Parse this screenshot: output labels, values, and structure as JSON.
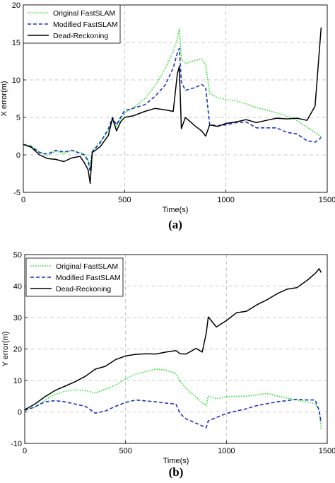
{
  "chart_data": [
    {
      "type": "line",
      "caption": "(a)",
      "xlabel": "Time(s)",
      "ylabel": "X error(m)",
      "xlim": [
        0,
        1500
      ],
      "ylim": [
        -5,
        20
      ],
      "xticks": [
        0,
        500,
        1000,
        1500
      ],
      "yticks": [
        -5,
        0,
        5,
        10,
        15,
        20
      ],
      "grid": true,
      "legend_position": "top-left",
      "series": [
        {
          "name": "Original FastSLAM",
          "color": "#33dd33",
          "dash": "dotted",
          "x": [
            0,
            40,
            80,
            120,
            160,
            200,
            240,
            280,
            300,
            320,
            330,
            340,
            380,
            420,
            440,
            460,
            480,
            500,
            540,
            600,
            650,
            700,
            740,
            760,
            770,
            780,
            800,
            850,
            880,
            900,
            920,
            960,
            1000,
            1050,
            1100,
            1150,
            1200,
            1250,
            1300,
            1350,
            1400,
            1440,
            1470
          ],
          "y": [
            1.4,
            1.2,
            0.4,
            -0.1,
            0.5,
            0.2,
            0.6,
            0.3,
            0.2,
            -0.6,
            -1.6,
            0.6,
            1.8,
            3.2,
            4.7,
            3.8,
            4.8,
            5.6,
            6.2,
            7.5,
            9.2,
            11.5,
            13.8,
            15.5,
            16.8,
            12.8,
            12.2,
            12.6,
            12.8,
            12.0,
            8.2,
            7.6,
            7.4,
            7.2,
            6.8,
            6.3,
            6.0,
            5.6,
            5.2,
            4.6,
            3.7,
            3.0,
            2.4
          ]
        },
        {
          "name": "Modified FastSLAM",
          "color": "#1a33c4",
          "dash": "dashed",
          "x": [
            0,
            40,
            80,
            120,
            160,
            200,
            240,
            280,
            300,
            320,
            330,
            340,
            380,
            420,
            440,
            460,
            480,
            500,
            540,
            600,
            650,
            700,
            740,
            760,
            770,
            780,
            800,
            850,
            880,
            900,
            920,
            960,
            1000,
            1050,
            1100,
            1150,
            1200,
            1250,
            1300,
            1350,
            1400,
            1440,
            1470
          ],
          "y": [
            1.4,
            1.1,
            0.3,
            0.1,
            0.6,
            0.4,
            0.6,
            0.2,
            0.0,
            -0.8,
            -2.2,
            0.4,
            1.6,
            3.5,
            5.0,
            4.0,
            5.0,
            5.9,
            6.2,
            6.7,
            7.8,
            9.3,
            11.6,
            13.6,
            14.2,
            9.7,
            8.6,
            9.0,
            9.4,
            9.0,
            4.0,
            3.9,
            4.0,
            4.3,
            4.4,
            3.6,
            3.6,
            3.6,
            3.0,
            2.8,
            1.9,
            1.7,
            2.3
          ]
        },
        {
          "name": "Dead-Reckoning",
          "color": "#000000",
          "dash": "solid",
          "x": [
            0,
            40,
            80,
            120,
            160,
            200,
            240,
            280,
            300,
            320,
            330,
            340,
            380,
            420,
            440,
            460,
            480,
            500,
            540,
            600,
            650,
            700,
            740,
            760,
            770,
            780,
            800,
            850,
            880,
            900,
            920,
            960,
            1000,
            1050,
            1100,
            1150,
            1200,
            1250,
            1300,
            1350,
            1400,
            1440,
            1470
          ],
          "y": [
            1.4,
            1.0,
            0.0,
            -0.5,
            -0.6,
            -0.9,
            -0.4,
            -0.2,
            -1.0,
            -2.0,
            -3.8,
            0.3,
            1.1,
            2.6,
            4.9,
            3.2,
            4.4,
            5.0,
            5.2,
            5.8,
            6.2,
            6.0,
            5.8,
            10.8,
            11.8,
            3.5,
            5.0,
            3.8,
            3.2,
            2.5,
            4.0,
            3.8,
            4.2,
            4.4,
            4.7,
            4.3,
            4.6,
            4.9,
            4.8,
            4.9,
            4.6,
            6.5,
            17.0
          ]
        }
      ]
    },
    {
      "type": "line",
      "caption": "(b)",
      "xlabel": "Time(s)",
      "ylabel": "Y error(m)",
      "xlim": [
        0,
        1500
      ],
      "ylim": [
        -10,
        50
      ],
      "xticks": [
        0,
        500,
        1000,
        1500
      ],
      "yticks": [
        -10,
        0,
        10,
        20,
        30,
        40,
        50
      ],
      "grid": true,
      "legend_position": "top-left",
      "series": [
        {
          "name": "Original FastSLAM",
          "color": "#33dd33",
          "dash": "dotted",
          "x": [
            0,
            50,
            100,
            150,
            200,
            250,
            300,
            350,
            400,
            450,
            500,
            550,
            600,
            650,
            700,
            750,
            770,
            800,
            850,
            900,
            910,
            950,
            1000,
            1050,
            1100,
            1150,
            1200,
            1250,
            1300,
            1350,
            1400,
            1440,
            1460,
            1470
          ],
          "y": [
            0.5,
            1.5,
            3.8,
            5.5,
            6.6,
            7.0,
            6.8,
            6.0,
            7.2,
            8.5,
            10.5,
            12.0,
            12.8,
            13.6,
            13.3,
            12.2,
            9.8,
            7.5,
            4.6,
            1.9,
            5.0,
            4.2,
            4.8,
            5.0,
            5.0,
            5.4,
            5.9,
            5.1,
            4.4,
            3.8,
            3.2,
            2.6,
            0.5,
            -5.5
          ]
        },
        {
          "name": "Modified FastSLAM",
          "color": "#1a33c4",
          "dash": "dashed",
          "x": [
            0,
            50,
            100,
            150,
            200,
            250,
            300,
            350,
            400,
            450,
            500,
            550,
            600,
            650,
            700,
            750,
            770,
            800,
            850,
            900,
            910,
            950,
            1000,
            1050,
            1100,
            1150,
            1200,
            1250,
            1300,
            1350,
            1400,
            1440,
            1460,
            1470
          ],
          "y": [
            0.5,
            1.6,
            3.2,
            3.6,
            3.2,
            2.5,
            1.8,
            -0.4,
            0.3,
            1.8,
            3.0,
            3.8,
            3.5,
            3.2,
            2.8,
            2.5,
            -0.5,
            -2.2,
            -3.6,
            -5.0,
            -2.8,
            -1.8,
            -0.5,
            0.3,
            1.0,
            2.0,
            2.6,
            3.2,
            3.6,
            4.0,
            3.8,
            3.8,
            0.5,
            -3.5
          ]
        },
        {
          "name": "Dead-Reckoning",
          "color": "#000000",
          "dash": "solid",
          "x": [
            0,
            50,
            100,
            150,
            200,
            250,
            300,
            350,
            400,
            450,
            500,
            550,
            600,
            650,
            700,
            750,
            770,
            800,
            850,
            880,
            900,
            910,
            950,
            1000,
            1050,
            1100,
            1150,
            1200,
            1250,
            1300,
            1350,
            1400,
            1440,
            1460,
            1470
          ],
          "y": [
            0.7,
            2.5,
            4.8,
            6.8,
            8.2,
            9.6,
            11.3,
            13.6,
            14.5,
            16.6,
            17.8,
            18.3,
            18.5,
            18.4,
            19.0,
            19.5,
            18.5,
            18.4,
            20.2,
            19.0,
            25.0,
            30.2,
            27.0,
            29.0,
            31.5,
            32.0,
            34.0,
            35.6,
            37.5,
            39.0,
            39.5,
            41.8,
            44.0,
            45.5,
            44.3
          ]
        }
      ]
    }
  ]
}
